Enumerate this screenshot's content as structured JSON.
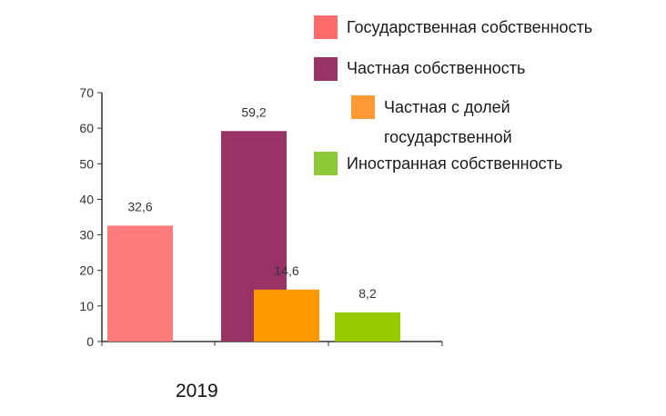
{
  "chart_data": {
    "type": "bar",
    "title": "",
    "xlabel": "",
    "ylabel": "",
    "categories": [
      "2019"
    ],
    "ylim": [
      0,
      70
    ],
    "yticks": [
      "0",
      "10",
      "20",
      "30",
      "40",
      "50",
      "60",
      "70"
    ],
    "grid": false,
    "legend_position": "top-right",
    "series": [
      {
        "name": "Государственная собственность",
        "values": [
          32.6
        ],
        "label": "32,6",
        "color": "#ff7b7b"
      },
      {
        "name": "Частная собственность",
        "values": [
          59.2
        ],
        "label": "59,2",
        "color": "#993366"
      },
      {
        "name": "Частная с долей государственной",
        "name_line1": "Частная с долей",
        "name_line2": "государственной",
        "values": [
          14.6
        ],
        "label": "14,6",
        "color": "#ff9900"
      },
      {
        "name": "Иностранная собственность",
        "values": [
          8.2
        ],
        "label": "8,2",
        "color": "#99cc00"
      }
    ]
  }
}
